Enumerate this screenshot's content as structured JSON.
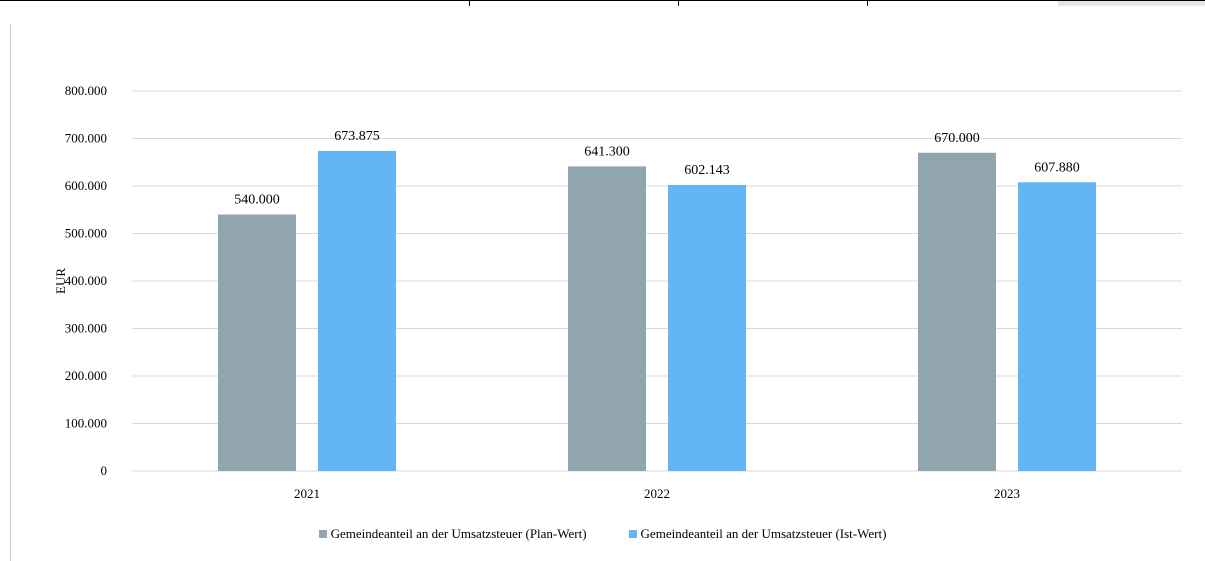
{
  "chart_data": {
    "type": "bar",
    "title": "",
    "xlabel": "",
    "ylabel": "EUR",
    "categories": [
      "2021",
      "2022",
      "2023"
    ],
    "series": [
      {
        "name": "Gemeindeanteil an der Umsatzsteuer (Plan-Wert)",
        "color": "#91a5ae",
        "values": [
          540000,
          641300,
          670000
        ],
        "labels": [
          "540.000",
          "641.300",
          "670.000"
        ]
      },
      {
        "name": "Gemeindeanteil an der Umsatzsteuer (Ist-Wert)",
        "color": "#63b5f4",
        "values": [
          673875,
          602143,
          607880
        ],
        "labels": [
          "673.875",
          "602.143",
          "607.880"
        ]
      }
    ],
    "ylim": [
      0,
      800000
    ],
    "yticks": [
      0,
      100000,
      200000,
      300000,
      400000,
      500000,
      600000,
      700000,
      800000
    ],
    "ytick_labels": [
      "0",
      "100.000",
      "200.000",
      "300.000",
      "400.000",
      "500.000",
      "600.000",
      "700.000",
      "800.000"
    ],
    "grid": true,
    "legend_position": "bottom"
  }
}
